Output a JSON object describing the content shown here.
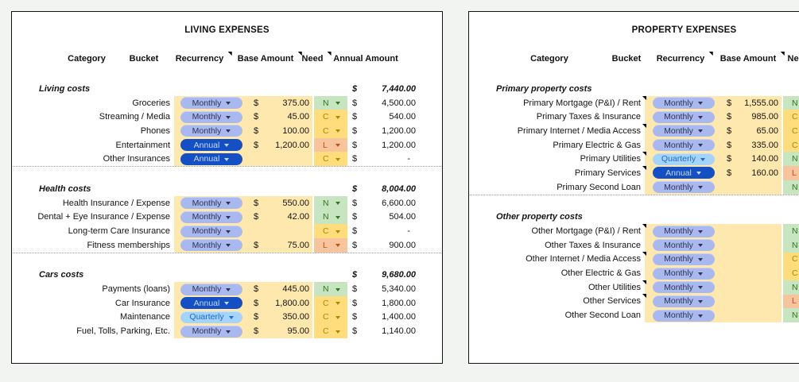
{
  "page": {
    "background": "#f1f4f0"
  },
  "colors": {
    "cell_yellow": "#ffe8ad",
    "need": {
      "N": {
        "bg": "#c6e5c0",
        "fg": "#31771c"
      },
      "C": {
        "bg": "#ffdd7c",
        "fg": "#b18600"
      },
      "L": {
        "bg": "#f8c49d",
        "fg": "#c14f17"
      }
    },
    "pills": {
      "Monthly": {
        "bg": "#a9b8ef",
        "fg": "#2c3454"
      },
      "Quarterly": {
        "bg": "#a5d3fa",
        "fg": "#1b6ad1"
      },
      "Annual": {
        "bg": "#1450c4",
        "fg": "#c8d8f8"
      }
    }
  },
  "tables": [
    {
      "title": "LIVING EXPENSES",
      "currency": "$",
      "headers": [
        {
          "label": "Category",
          "note": false
        },
        {
          "label": "Bucket",
          "note": false
        },
        {
          "label": "Recurrency",
          "note": true
        },
        {
          "label": "Base Amount",
          "note": true
        },
        {
          "label": "Need",
          "note": true
        },
        {
          "label": "Annual Amount",
          "note": false
        }
      ],
      "sections": [
        {
          "name": "Living costs",
          "total": "7,440.00",
          "divider_after": true,
          "rows": [
            {
              "label": "Groceries",
              "note": false,
              "recurrency": "Monthly",
              "base": "375.00",
              "need": "N",
              "annual": "4,500.00"
            },
            {
              "label": "Streaming / Media",
              "note": false,
              "recurrency": "Monthly",
              "base": "45.00",
              "need": "C",
              "annual": "540.00"
            },
            {
              "label": "Phones",
              "note": false,
              "recurrency": "Monthly",
              "base": "100.00",
              "need": "C",
              "annual": "1,200.00"
            },
            {
              "label": "Entertainment",
              "note": false,
              "recurrency": "Annual",
              "base": "1,200.00",
              "need": "L",
              "annual": "1,200.00"
            },
            {
              "label": "Other Insurances",
              "note": false,
              "recurrency": "Annual",
              "base": "",
              "need": "C",
              "annual": "-"
            }
          ]
        },
        {
          "name": "Health costs",
          "total": "8,004.00",
          "divider_after": true,
          "rows": [
            {
              "label": "Health Insurance / Expense",
              "note": false,
              "recurrency": "Monthly",
              "base": "550.00",
              "need": "N",
              "annual": "6,600.00"
            },
            {
              "label": "Dental + Eye Insurance / Expense",
              "note": false,
              "recurrency": "Monthly",
              "base": "42.00",
              "need": "N",
              "annual": "504.00"
            },
            {
              "label": "Long-term Care Insurance",
              "note": false,
              "recurrency": "Monthly",
              "base": "",
              "need": "C",
              "annual": "-"
            },
            {
              "label": "Fitness memberships",
              "note": false,
              "recurrency": "Monthly",
              "base": "75.00",
              "need": "L",
              "annual": "900.00"
            }
          ]
        },
        {
          "name": "Cars costs",
          "total": "9,680.00",
          "divider_after": false,
          "rows": [
            {
              "label": "Payments (loans)",
              "note": false,
              "recurrency": "Monthly",
              "base": "445.00",
              "need": "N",
              "annual": "5,340.00"
            },
            {
              "label": "Car Insurance",
              "note": false,
              "recurrency": "Annual",
              "base": "1,800.00",
              "need": "C",
              "annual": "1,800.00"
            },
            {
              "label": "Maintenance",
              "note": false,
              "recurrency": "Quarterly",
              "base": "350.00",
              "need": "C",
              "annual": "1,400.00"
            },
            {
              "label": "Fuel, Tolls, Parking, Etc.",
              "note": false,
              "recurrency": "Monthly",
              "base": "95.00",
              "need": "C",
              "annual": "1,140.00"
            }
          ]
        }
      ]
    },
    {
      "title": "PROPERTY EXPENSES",
      "currency": "$",
      "headers": [
        {
          "label": "Category",
          "note": false
        },
        {
          "label": "Bucket",
          "note": false
        },
        {
          "label": "Recurrency",
          "note": true
        },
        {
          "label": "Base Amount",
          "note": true
        },
        {
          "label": "Need",
          "note": false
        }
      ],
      "sections": [
        {
          "name": "Primary property costs",
          "total": "",
          "divider_after": true,
          "rows": [
            {
              "label": "Primary Mortgage (P&I) / Rent",
              "note": true,
              "recurrency": "Monthly",
              "base": "1,555.00",
              "need": "N"
            },
            {
              "label": "Primary Taxes & Insurance",
              "note": false,
              "recurrency": "Monthly",
              "base": "985.00",
              "need": "C"
            },
            {
              "label": "Primary Internet / Media Access",
              "note": true,
              "recurrency": "Monthly",
              "base": "65.00",
              "need": "C"
            },
            {
              "label": "Primary Electric & Gas",
              "note": false,
              "recurrency": "Monthly",
              "base": "335.00",
              "need": "C"
            },
            {
              "label": "Primary Utilities",
              "note": true,
              "recurrency": "Quarterly",
              "base": "140.00",
              "need": "N"
            },
            {
              "label": "Primary Services",
              "note": true,
              "recurrency": "Annual",
              "base": "160.00",
              "need": "L"
            },
            {
              "label": "Primary Second Loan",
              "note": false,
              "recurrency": "Monthly",
              "base": "",
              "need": "N"
            }
          ]
        },
        {
          "name": "Other property costs",
          "total": "",
          "divider_after": false,
          "rows": [
            {
              "label": "Other Mortgage (P&I) / Rent",
              "note": true,
              "recurrency": "Monthly",
              "base": "",
              "need": "N"
            },
            {
              "label": "Other Taxes & Insurance",
              "note": false,
              "recurrency": "Monthly",
              "base": "",
              "need": "N"
            },
            {
              "label": "Other Internet / Media Access",
              "note": true,
              "recurrency": "Monthly",
              "base": "",
              "need": "C"
            },
            {
              "label": "Other Electric & Gas",
              "note": false,
              "recurrency": "Monthly",
              "base": "",
              "need": "C"
            },
            {
              "label": "Other Utilities",
              "note": true,
              "recurrency": "Monthly",
              "base": "",
              "need": "N"
            },
            {
              "label": "Other Services",
              "note": true,
              "recurrency": "Monthly",
              "base": "",
              "need": "L"
            },
            {
              "label": "Other Second Loan",
              "note": false,
              "recurrency": "Monthly",
              "base": "",
              "need": "N"
            }
          ]
        }
      ]
    }
  ]
}
